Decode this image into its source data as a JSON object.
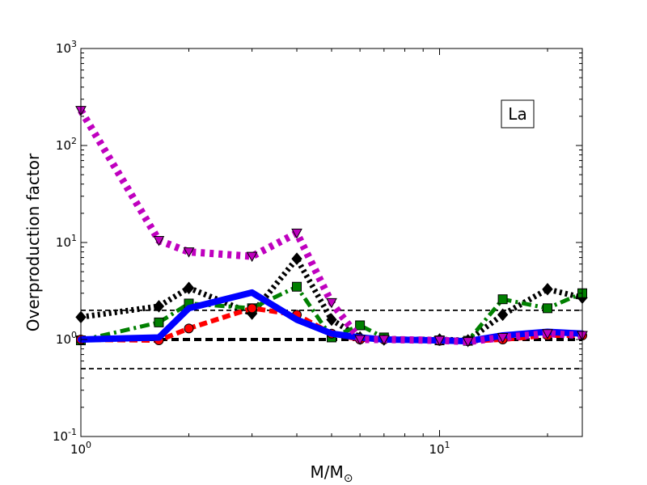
{
  "chart_data": {
    "type": "line",
    "title": "",
    "xlabel": "M/M",
    "xlabel_subscript": "⊙",
    "ylabel": "Overproduction factor",
    "xscale": "log",
    "yscale": "log",
    "xlim": [
      1,
      25
    ],
    "ylim": [
      0.1,
      1000
    ],
    "grid": false,
    "legend": "none",
    "annotation": "La",
    "annotation_position": "top-right",
    "x_tick_labels": [
      {
        "value": 1,
        "base": "10",
        "exp": "0"
      },
      {
        "value": 10,
        "base": "10",
        "exp": "1"
      }
    ],
    "y_tick_labels": [
      {
        "value": 0.1,
        "base": "10",
        "exp": "-1"
      },
      {
        "value": 1,
        "base": "10",
        "exp": "0"
      },
      {
        "value": 10,
        "base": "10",
        "exp": "1"
      },
      {
        "value": 100,
        "base": "10",
        "exp": "2"
      },
      {
        "value": 1000,
        "base": "10",
        "exp": "3"
      }
    ],
    "reference_lines": [
      {
        "y": 2,
        "style": "thin-dashed",
        "color": "#000000"
      },
      {
        "y": 1,
        "style": "thick-dashed",
        "color": "#000000"
      },
      {
        "y": 0.5,
        "style": "thin-dashed",
        "color": "#000000"
      }
    ],
    "series": [
      {
        "color": "#000000",
        "style": "dotted",
        "marker": "diamond",
        "x": [
          1,
          1.65,
          2,
          3,
          4,
          5,
          6,
          7,
          10,
          12,
          15,
          20,
          25
        ],
        "y": [
          1.7,
          2.2,
          3.4,
          1.85,
          6.8,
          1.6,
          1.05,
          1.0,
          1.0,
          0.98,
          1.8,
          3.3,
          2.7
        ]
      },
      {
        "color": "#008000",
        "style": "dashdot",
        "marker": "square",
        "x": [
          1,
          1.65,
          2,
          3,
          4,
          5,
          6,
          7,
          10,
          12,
          15,
          20,
          25
        ],
        "y": [
          0.98,
          1.5,
          2.35,
          2.1,
          3.5,
          1.05,
          1.4,
          1.05,
          0.98,
          0.97,
          2.6,
          2.1,
          3.0
        ]
      },
      {
        "color": "#ff0000",
        "style": "dashed",
        "marker": "circle",
        "x": [
          1,
          1.65,
          2,
          3,
          4,
          5,
          6,
          7,
          10,
          12,
          15,
          20,
          25
        ],
        "y": [
          1.0,
          0.98,
          1.3,
          2.1,
          1.8,
          1.15,
          1.0,
          1.0,
          0.97,
          0.96,
          1.0,
          1.1,
          1.1
        ]
      },
      {
        "color": "#0000ff",
        "style": "solid",
        "marker": "none",
        "x": [
          1,
          1.65,
          2,
          3,
          4,
          5,
          6,
          7,
          10,
          12,
          15,
          20,
          25
        ],
        "y": [
          1.0,
          1.05,
          2.1,
          3.05,
          1.6,
          1.15,
          1.05,
          1.0,
          0.98,
          0.96,
          1.1,
          1.2,
          1.15
        ]
      },
      {
        "color": "#bf00bf",
        "style": "dotted",
        "marker": "triangle-down",
        "x": [
          1,
          1.65,
          2,
          3,
          4,
          5,
          6,
          7,
          10,
          12,
          15,
          20,
          25
        ],
        "y": [
          230,
          10.5,
          8.0,
          7.2,
          12.5,
          2.4,
          1.0,
          1.0,
          0.98,
          0.95,
          1.05,
          1.15,
          1.1
        ]
      }
    ]
  }
}
